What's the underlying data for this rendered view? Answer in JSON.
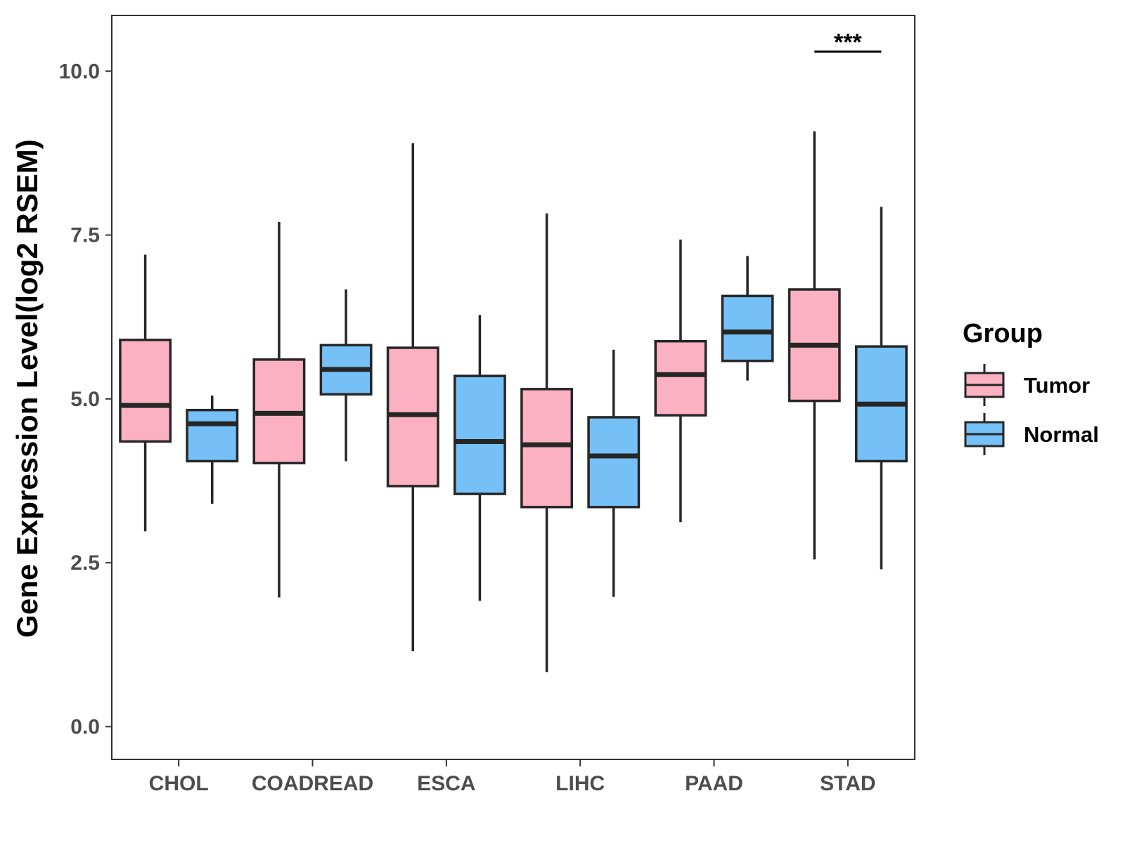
{
  "chart_data": {
    "type": "box",
    "title": "",
    "xlabel": "",
    "ylabel": "Gene Expression Level(log2 RSEM)",
    "ylim": [
      -0.5,
      10.85
    ],
    "yticks": [
      0.0,
      2.5,
      5.0,
      7.5,
      10.0
    ],
    "ytick_labels": [
      "0.0",
      "2.5",
      "5.0",
      "7.5",
      "10.0"
    ],
    "grid": false,
    "categories": [
      "CHOL",
      "COADREAD",
      "ESCA",
      "LIHC",
      "PAAD",
      "STAD"
    ],
    "legend": {
      "title": "Group",
      "placement": "right",
      "entries": [
        {
          "name": "Tumor",
          "color": "#FBB1C1"
        },
        {
          "name": "Normal",
          "color": "#75C0F7"
        }
      ]
    },
    "series": [
      {
        "name": "Tumor",
        "color": "#FBB1C1",
        "boxes": [
          {
            "min": 2.98,
            "q1": 4.35,
            "median": 4.9,
            "q3": 5.9,
            "max": 7.2
          },
          {
            "min": 1.97,
            "q1": 4.02,
            "median": 4.78,
            "q3": 5.6,
            "max": 7.7
          },
          {
            "min": 1.15,
            "q1": 3.67,
            "median": 4.76,
            "q3": 5.78,
            "max": 8.9
          },
          {
            "min": 0.83,
            "q1": 3.35,
            "median": 4.3,
            "q3": 5.15,
            "max": 7.83
          },
          {
            "min": 3.12,
            "q1": 4.75,
            "median": 5.37,
            "q3": 5.88,
            "max": 7.43
          },
          {
            "min": 2.55,
            "q1": 4.97,
            "median": 5.82,
            "q3": 6.67,
            "max": 9.08
          }
        ]
      },
      {
        "name": "Normal",
        "color": "#75C0F7",
        "boxes": [
          {
            "min": 3.4,
            "q1": 4.05,
            "median": 4.62,
            "q3": 4.83,
            "max": 5.05
          },
          {
            "min": 4.05,
            "q1": 5.07,
            "median": 5.45,
            "q3": 5.82,
            "max": 6.67
          },
          {
            "min": 1.92,
            "q1": 3.55,
            "median": 4.35,
            "q3": 5.35,
            "max": 6.28
          },
          {
            "min": 1.98,
            "q1": 3.35,
            "median": 4.13,
            "q3": 4.72,
            "max": 5.75
          },
          {
            "min": 5.28,
            "q1": 5.58,
            "median": 6.02,
            "q3": 6.57,
            "max": 7.18
          },
          {
            "min": 2.4,
            "q1": 4.05,
            "median": 4.92,
            "q3": 5.8,
            "max": 7.93
          }
        ]
      }
    ],
    "annotations": [
      {
        "category": "STAD",
        "text": "***",
        "y": 10.3
      }
    ]
  }
}
